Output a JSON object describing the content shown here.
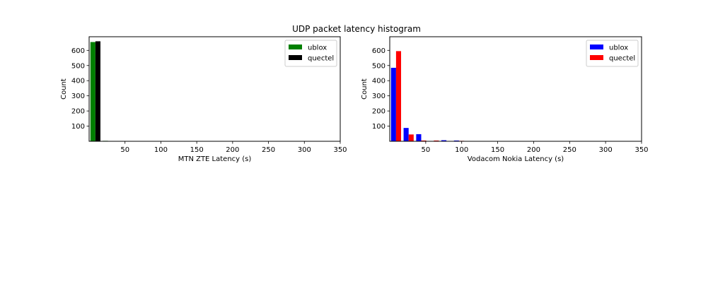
{
  "figure": {
    "title": "UDP packet latency histogram"
  },
  "chart_data": [
    {
      "type": "bar",
      "xlabel": "MTN ZTE Latency (s)",
      "ylabel": "Count",
      "xlim": [
        0,
        350
      ],
      "ylim": [
        0,
        690
      ],
      "xticks": [
        50,
        100,
        150,
        200,
        250,
        300,
        350
      ],
      "yticks": [
        100,
        200,
        300,
        400,
        500,
        600
      ],
      "bin_width": 17.5,
      "bin_starts": [
        0,
        17.5
      ],
      "legend_position": "upper-right",
      "grid": false,
      "series": [
        {
          "name": "ublox",
          "color": "#008000",
          "values": [
            655,
            3
          ]
        },
        {
          "name": "quectel",
          "color": "#000000",
          "values": [
            660,
            0
          ]
        }
      ]
    },
    {
      "type": "bar",
      "xlabel": "Vodacom Nokia Latency (s)",
      "ylabel": "Count",
      "xlim": [
        0,
        350
      ],
      "ylim": [
        0,
        690
      ],
      "xticks": [
        50,
        100,
        150,
        200,
        250,
        300,
        350
      ],
      "yticks": [
        100,
        200,
        300,
        400,
        500,
        600
      ],
      "bin_width": 17.5,
      "bin_starts": [
        0,
        17.5,
        35,
        52.5,
        70,
        87.5
      ],
      "legend_position": "upper-right",
      "grid": false,
      "series": [
        {
          "name": "ublox",
          "color": "#0000ff",
          "values": [
            485,
            88,
            47,
            0,
            7,
            5
          ]
        },
        {
          "name": "quectel",
          "color": "#ff0000",
          "values": [
            595,
            45,
            5,
            5,
            0,
            3
          ]
        }
      ]
    }
  ]
}
